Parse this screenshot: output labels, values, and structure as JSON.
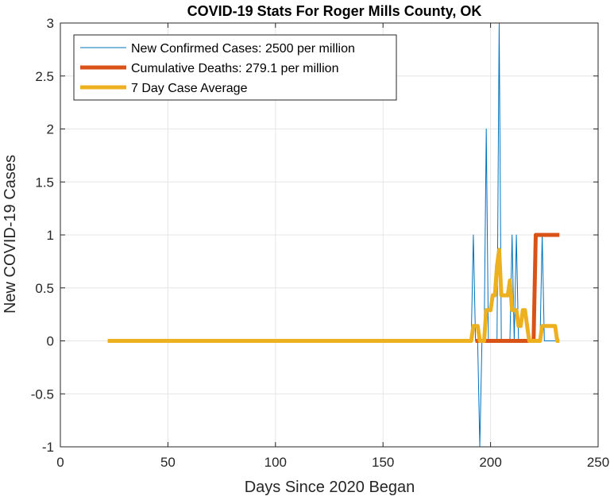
{
  "chart_data": {
    "type": "line",
    "title": "COVID-19 Stats For Roger Mills County, OK",
    "xlabel": "Days Since 2020 Began",
    "ylabel": "New COVID-19 Cases",
    "xlim": [
      0,
      250
    ],
    "ylim": [
      -1,
      3
    ],
    "xticks": [
      0,
      50,
      100,
      150,
      200,
      250
    ],
    "xtick_labels": [
      "0",
      "50",
      "100",
      "150",
      "200",
      "250"
    ],
    "yticks": [
      -1,
      -0.5,
      0,
      0.5,
      1,
      1.5,
      2,
      2.5,
      3
    ],
    "ytick_labels": [
      "-1",
      "-0.5",
      "0",
      "0.5",
      "1",
      "1.5",
      "2",
      "2.5",
      "3"
    ],
    "grid": true,
    "legend_position": "top-left",
    "series": [
      {
        "name": "New Confirmed Cases: 2500 per million",
        "color": "#0072BD",
        "line_width": 1,
        "x": [
          22,
          190,
          191,
          192,
          193,
          194,
          195,
          196,
          197,
          198,
          199,
          200,
          201,
          202,
          203,
          204,
          205,
          206,
          207,
          208,
          209,
          210,
          211,
          212,
          213,
          214,
          215,
          216,
          217,
          218,
          219,
          220,
          221,
          222,
          223,
          224,
          225,
          226,
          227,
          228,
          229,
          230,
          231,
          232
        ],
        "y": [
          0,
          0,
          0,
          1,
          0,
          0,
          -1,
          0,
          0,
          2,
          0,
          0,
          0,
          0,
          0,
          3,
          0,
          0,
          0,
          0,
          0,
          1,
          0,
          1,
          0,
          0,
          0,
          0,
          0,
          0,
          0,
          0,
          0,
          0,
          0,
          1,
          0,
          0,
          0,
          0,
          0,
          0,
          0,
          0
        ]
      },
      {
        "name": "Cumulative Deaths: 279.1 per million",
        "color": "#D95319",
        "line_width": 5,
        "x": [
          193,
          218,
          220,
          221,
          232
        ],
        "y": [
          0,
          0,
          0,
          1,
          1
        ]
      },
      {
        "name": "7 Day Case Average",
        "color": "#EDB120",
        "line_width": 5,
        "x": [
          22,
          190,
          191,
          192,
          193,
          194,
          195,
          196,
          197,
          198,
          199,
          200,
          201,
          202,
          203,
          204,
          205,
          206,
          207,
          208,
          209,
          210,
          211,
          212,
          213,
          214,
          215,
          216,
          217,
          218,
          219,
          220,
          221,
          222,
          223,
          224,
          225,
          226,
          227,
          228,
          229,
          230,
          231,
          232
        ],
        "y": [
          0,
          0,
          0,
          0.14,
          0.14,
          0.14,
          0,
          0,
          0,
          0.29,
          0.29,
          0.29,
          0.43,
          0.43,
          0.71,
          0.86,
          0.43,
          0.43,
          0.43,
          0.43,
          0.57,
          0.29,
          0.29,
          0.29,
          0.14,
          0.14,
          0.29,
          0.29,
          0.14,
          0,
          0,
          0,
          0,
          0,
          0,
          0.14,
          0.14,
          0.14,
          0.14,
          0.14,
          0.14,
          0.14,
          0,
          0
        ]
      }
    ]
  }
}
